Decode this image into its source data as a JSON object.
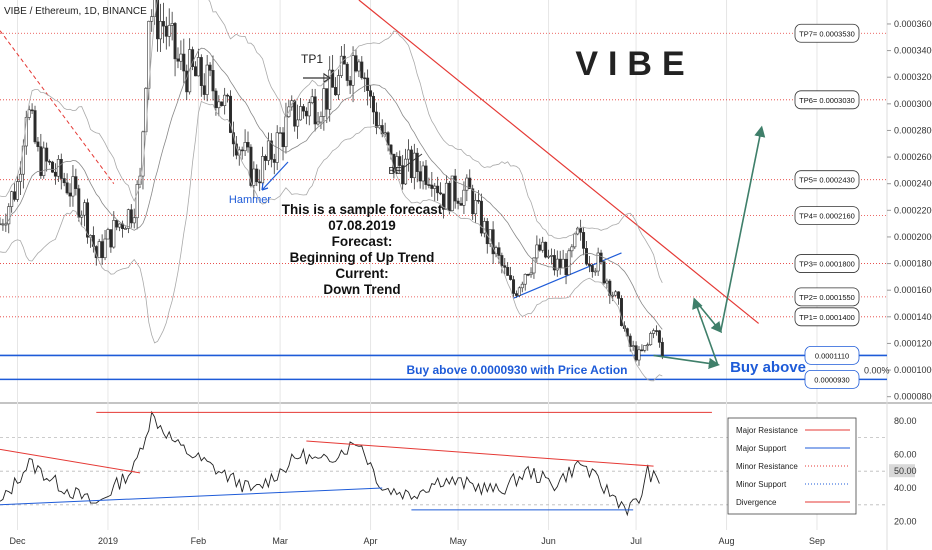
{
  "header": {
    "title": "VIBE / Ethereum, 1D, BINANCE"
  },
  "watermark": "VIBE",
  "chart_data": [
    {
      "type": "candlestick",
      "y_ticks": [
        "0.0003600",
        "0.0003400",
        "0.0003200",
        "0.0003000",
        "0.0002800",
        "0.0002600",
        "0.0002400",
        "0.0002200",
        "0.0002000",
        "0.0001800",
        "0.0001600",
        "0.0001400",
        "0.0001200",
        "0.0001000",
        "0.0000800"
      ],
      "x_ticks": [
        "Dec",
        "2019",
        "Feb",
        "Mar",
        "Apr",
        "May",
        "Jun",
        "Jul",
        "Aug",
        "Sep"
      ],
      "ylim": [
        7.6e-05,
        0.000378
      ],
      "price_path": [
        [
          "2018-11-25",
          0.00021
        ],
        [
          "2018-12-01",
          0.00024
        ],
        [
          "2018-12-04",
          0.0003
        ],
        [
          "2018-12-08",
          0.00026
        ],
        [
          "2018-12-13",
          0.00025
        ],
        [
          "2018-12-18",
          0.00024
        ],
        [
          "2018-12-24",
          0.00022
        ],
        [
          "2018-12-28",
          0.000185
        ],
        [
          "2019-01-03",
          0.000205
        ],
        [
          "2019-01-09",
          0.00022
        ],
        [
          "2019-01-12",
          0.00024
        ],
        [
          "2019-01-15",
          0.00037
        ],
        [
          "2019-01-20",
          0.00036
        ],
        [
          "2019-01-25",
          0.00033
        ],
        [
          "2019-01-31",
          0.00032
        ],
        [
          "2019-02-08",
          0.00031
        ],
        [
          "2019-02-15",
          0.00027
        ],
        [
          "2019-02-20",
          0.000245
        ],
        [
          "2019-02-24",
          0.000255
        ],
        [
          "2019-03-01",
          0.000275
        ],
        [
          "2019-03-05",
          0.00029
        ],
        [
          "2019-03-12",
          0.0003
        ],
        [
          "2019-03-19",
          0.00031
        ],
        [
          "2019-03-25",
          0.00033
        ],
        [
          "2019-03-28",
          0.000345
        ],
        [
          "2019-04-01",
          0.0003
        ],
        [
          "2019-04-04",
          0.000285
        ],
        [
          "2019-04-08",
          0.000255
        ],
        [
          "2019-04-15",
          0.000252
        ],
        [
          "2019-04-22",
          0.00025
        ],
        [
          "2019-04-26",
          0.00023
        ],
        [
          "2019-05-01",
          0.000235
        ],
        [
          "2019-05-05",
          0.000232
        ],
        [
          "2019-05-10",
          0.000205
        ],
        [
          "2019-05-15",
          0.000182
        ],
        [
          "2019-05-20",
          0.000158
        ],
        [
          "2019-05-24",
          0.000175
        ],
        [
          "2019-05-29",
          0.00019
        ],
        [
          "2019-06-03",
          0.000178
        ],
        [
          "2019-06-08",
          0.00018
        ],
        [
          "2019-06-11",
          0.0002
        ],
        [
          "2019-06-14",
          0.000188
        ],
        [
          "2019-06-18",
          0.00018
        ],
        [
          "2019-06-22",
          0.000165
        ],
        [
          "2019-06-26",
          0.00014
        ],
        [
          "2019-06-28",
          0.00012
        ],
        [
          "2019-07-02",
          0.00011
        ],
        [
          "2019-07-05",
          0.000118
        ],
        [
          "2019-07-07",
          0.000135
        ],
        [
          "2019-07-10",
          0.00011
        ]
      ],
      "horizontal_levels": [
        {
          "label": "TP7= 0.0003530",
          "value": 0.000353
        },
        {
          "label": "TP6= 0.0003030",
          "value": 0.000303
        },
        {
          "label": "TP5= 0.0002430",
          "value": 0.000243
        },
        {
          "label": "TP4= 0.0002160",
          "value": 0.000216
        },
        {
          "label": "TP3= 0.0001800",
          "value": 0.00018
        },
        {
          "label": "TP2= 0.0001550",
          "value": 0.000155
        },
        {
          "label": "TP1= 0.0001400",
          "value": 0.00014
        }
      ],
      "support_levels": [
        {
          "label": "0.0001110",
          "value": 0.000111
        },
        {
          "label": "0.0000930",
          "value": 9.3e-05
        }
      ],
      "right_badge": "0.00%",
      "trendline_down": {
        "from": [
          "2019-03-28",
          0.000378
        ],
        "to": [
          "2019-08-12",
          0.000135
        ]
      },
      "trendline_dashed": {
        "from": [
          "2018-11-25",
          0.000355
        ],
        "to": [
          "2019-01-03",
          0.00024
        ]
      },
      "trendline_support": {
        "from": [
          "2019-05-20",
          0.000154
        ],
        "to": [
          "2019-06-26",
          0.000188
        ]
      },
      "forecast_path": [
        [
          "2019-07-07",
          0.000111
        ],
        [
          "2019-07-29",
          0.000104
        ],
        [
          "2019-07-21",
          0.000153
        ],
        [
          "2019-07-30",
          0.000129
        ],
        [
          "2019-08-13",
          0.000282
        ]
      ],
      "annotations": {
        "tp1": "TP1",
        "be": "BE",
        "hammer": "Hammer",
        "forecast_note": [
          "This is a sample forecast",
          "07.08.2019",
          "Forecast:",
          "Beginning of Up Trend",
          "Current:",
          "Down Trend"
        ],
        "buy_line": "Buy above 0.0000930 with Price Action",
        "buy_above": "Buy above"
      }
    },
    {
      "type": "line",
      "name": "oscillator",
      "y_ticks": [
        "80.00",
        "60.00",
        "50.00",
        "40.00",
        "20.00"
      ],
      "ylim": [
        15,
        90
      ],
      "highlight_value": "50.00",
      "values_path": [
        [
          "2018-11-25",
          30
        ],
        [
          "2018-12-05",
          55
        ],
        [
          "2018-12-15",
          42
        ],
        [
          "2018-12-28",
          30
        ],
        [
          "2019-01-10",
          52
        ],
        [
          "2019-01-16",
          83
        ],
        [
          "2019-01-25",
          65
        ],
        [
          "2019-02-08",
          50
        ],
        [
          "2019-02-20",
          38
        ],
        [
          "2019-03-01",
          50
        ],
        [
          "2019-03-08",
          60
        ],
        [
          "2019-03-15",
          55
        ],
        [
          "2019-03-28",
          68
        ],
        [
          "2019-04-05",
          40
        ],
        [
          "2019-04-15",
          36
        ],
        [
          "2019-04-25",
          45
        ],
        [
          "2019-05-05",
          42
        ],
        [
          "2019-05-15",
          38
        ],
        [
          "2019-05-25",
          50
        ],
        [
          "2019-06-03",
          42
        ],
        [
          "2019-06-12",
          55
        ],
        [
          "2019-06-20",
          40
        ],
        [
          "2019-06-28",
          28
        ],
        [
          "2019-07-02",
          32
        ],
        [
          "2019-07-05",
          50
        ],
        [
          "2019-07-09",
          42
        ]
      ],
      "reference_lines": [
        {
          "from": [
            "2018-11-25",
            63
          ],
          "to": [
            "2019-01-12",
            49
          ],
          "kind": "major-resistance"
        },
        {
          "from": [
            "2018-11-25",
            30
          ],
          "to": [
            "2019-04-05",
            40
          ],
          "kind": "major-support"
        },
        {
          "from": [
            "2019-03-10",
            68
          ],
          "to": [
            "2019-07-07",
            53
          ],
          "kind": "major-resistance"
        },
        {
          "from": [
            "2019-04-15",
            27
          ],
          "to": [
            "2019-06-30",
            27
          ],
          "kind": "major-support"
        },
        {
          "from": [
            "2018-12-28",
            85
          ],
          "to": [
            "2019-07-27",
            85
          ],
          "kind": "divergence"
        }
      ],
      "legend": [
        {
          "label": "Major Resistance",
          "color": "#e53935",
          "style": "solid"
        },
        {
          "label": "Major Support",
          "color": "#1e5bd8",
          "style": "solid"
        },
        {
          "label": "Minor Resistance",
          "color": "#e53935",
          "style": "dotted"
        },
        {
          "label": "Minor Support",
          "color": "#1e5bd8",
          "style": "dotted"
        },
        {
          "label": "Divergence",
          "color": "#e53935",
          "style": "solid"
        }
      ]
    }
  ],
  "colors": {
    "up": "#2a2a2a",
    "down": "#2a2a2a",
    "resistance": "#e53935",
    "support": "#1e5bd8",
    "forecast": "#3f7f6a",
    "grid": "#e6e6e6"
  }
}
